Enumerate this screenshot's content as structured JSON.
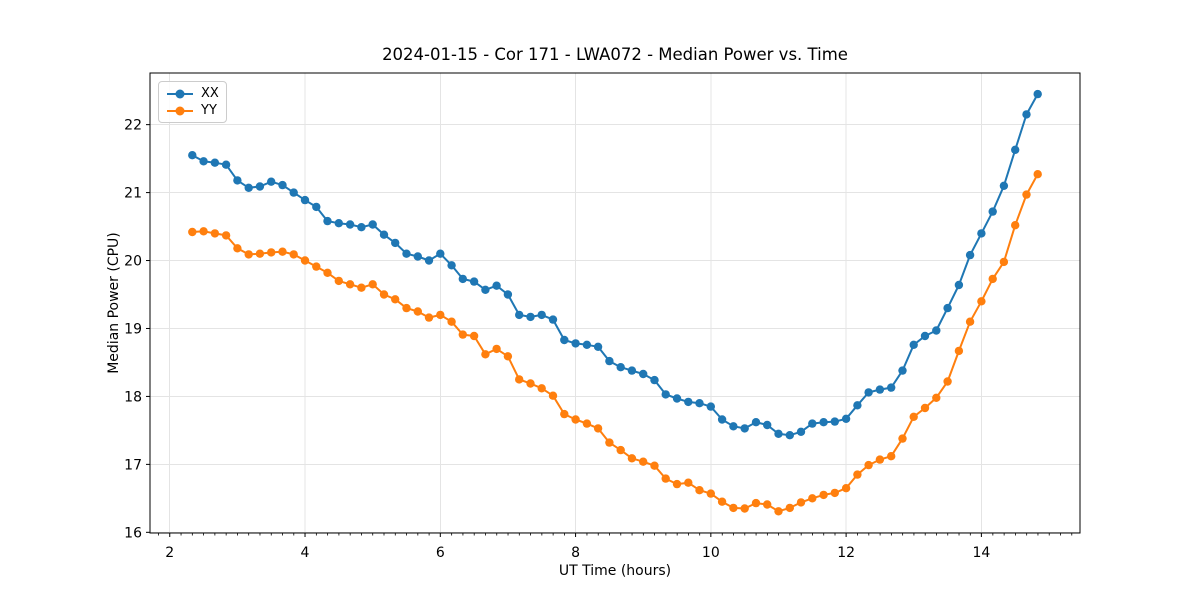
{
  "figure": {
    "background": "#ffffff"
  },
  "chart_data": {
    "type": "line",
    "title": "2024-01-15 - Cor 171 - LWA072 - Median Power vs. Time",
    "xlabel": "UT Time (hours)",
    "ylabel": "Median Power (CPU)",
    "xlim": [
      1.708,
      15.458
    ],
    "ylim": [
      15.99,
      22.76
    ],
    "x_ticks": [
      2,
      4,
      6,
      8,
      10,
      12,
      14
    ],
    "y_ticks": [
      16,
      17,
      18,
      19,
      20,
      21,
      22
    ],
    "minor_x_tick_step": 0.1667,
    "grid": true,
    "grid_color": "#e4e4e4",
    "legend_position": "upper left",
    "x": [
      2.333,
      2.5,
      2.667,
      2.833,
      3.0,
      3.167,
      3.333,
      3.5,
      3.667,
      3.833,
      4.0,
      4.167,
      4.333,
      4.5,
      4.667,
      4.833,
      5.0,
      5.167,
      5.333,
      5.5,
      5.667,
      5.833,
      6.0,
      6.167,
      6.333,
      6.5,
      6.667,
      6.833,
      7.0,
      7.167,
      7.333,
      7.5,
      7.667,
      7.833,
      8.0,
      8.167,
      8.333,
      8.5,
      8.667,
      8.833,
      9.0,
      9.167,
      9.333,
      9.5,
      9.667,
      9.833,
      10.0,
      10.167,
      10.333,
      10.5,
      10.667,
      10.833,
      11.0,
      11.167,
      11.333,
      11.5,
      11.667,
      11.833,
      12.0,
      12.167,
      12.333,
      12.5,
      12.667,
      12.833,
      13.0,
      13.167,
      13.333,
      13.5,
      13.667,
      13.833,
      14.0,
      14.167,
      14.333,
      14.5,
      14.667,
      14.833
    ],
    "series": [
      {
        "name": "XX",
        "color": "#1f77b4",
        "values": [
          21.55,
          21.46,
          21.44,
          21.41,
          21.18,
          21.07,
          21.09,
          21.16,
          21.11,
          21.0,
          20.89,
          20.79,
          20.58,
          20.55,
          20.53,
          20.49,
          20.53,
          20.38,
          20.26,
          20.1,
          20.06,
          20.0,
          20.1,
          19.93,
          19.73,
          19.69,
          19.57,
          19.63,
          19.5,
          19.2,
          19.17,
          19.2,
          19.13,
          18.83,
          18.78,
          18.76,
          18.73,
          18.52,
          18.43,
          18.38,
          18.33,
          18.24,
          18.03,
          17.97,
          17.92,
          17.9,
          17.85,
          17.66,
          17.56,
          17.53,
          17.62,
          17.58,
          17.45,
          17.43,
          17.48,
          17.6,
          17.62,
          17.63,
          17.67,
          17.87,
          18.06,
          18.1,
          18.13,
          18.38,
          18.76,
          18.89,
          18.97,
          19.3,
          19.64,
          20.08,
          20.4,
          20.72,
          21.1,
          21.63,
          22.15,
          22.45
        ]
      },
      {
        "name": "YY",
        "color": "#ff7f0e",
        "values": [
          20.42,
          20.43,
          20.4,
          20.37,
          20.18,
          20.09,
          20.1,
          20.12,
          20.13,
          20.09,
          20.0,
          19.91,
          19.82,
          19.7,
          19.65,
          19.6,
          19.65,
          19.5,
          19.43,
          19.3,
          19.25,
          19.16,
          19.2,
          19.1,
          18.91,
          18.89,
          18.62,
          18.7,
          18.59,
          18.25,
          18.19,
          18.12,
          18.01,
          17.74,
          17.66,
          17.6,
          17.53,
          17.32,
          17.21,
          17.09,
          17.04,
          16.98,
          16.79,
          16.71,
          16.73,
          16.62,
          16.57,
          16.45,
          16.36,
          16.35,
          16.43,
          16.41,
          16.31,
          16.36,
          16.44,
          16.5,
          16.55,
          16.58,
          16.65,
          16.85,
          16.99,
          17.07,
          17.12,
          17.38,
          17.7,
          17.83,
          17.98,
          18.22,
          18.67,
          19.1,
          19.4,
          19.73,
          19.98,
          20.52,
          20.97,
          21.27
        ]
      }
    ]
  }
}
